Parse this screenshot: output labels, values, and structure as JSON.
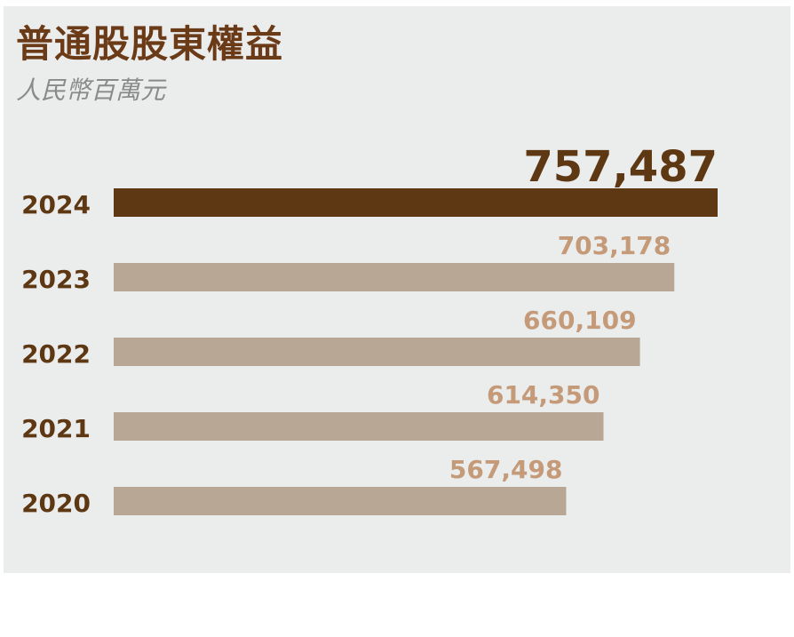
{
  "colors": {
    "highlight_bar": "#5e3713",
    "highlight_text": "#5e3713",
    "bar": "#b9a796",
    "value_text": "#c49a78",
    "year_text": "#5e3713",
    "panel_bg": "#ebecec"
  },
  "chart_data": {
    "type": "bar",
    "orientation": "horizontal",
    "title": "普通股股東權益",
    "subtitle": "人民幣百萬元",
    "categories": [
      "2024",
      "2023",
      "2022",
      "2021",
      "2020"
    ],
    "values": [
      757487,
      703178,
      660109,
      614350,
      567498
    ],
    "value_labels": [
      "757,487",
      "703,178",
      "660,109",
      "614,350",
      "567,498"
    ],
    "highlight_index": 0,
    "grid": false,
    "legend": "none"
  }
}
